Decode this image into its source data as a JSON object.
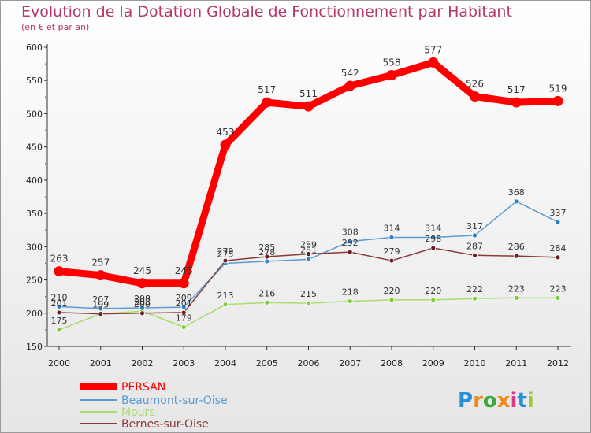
{
  "chart_data": {
    "type": "line",
    "title": "Evolution de la Dotation Globale de Fonctionnement par Habitant",
    "subtitle": "(en € et par an)",
    "categories": [
      "2000",
      "2001",
      "2002",
      "2003",
      "2004",
      "2005",
      "2006",
      "2007",
      "2008",
      "2009",
      "2010",
      "2011",
      "2012"
    ],
    "ylim": [
      150,
      600
    ],
    "yticks": [
      150,
      200,
      250,
      300,
      350,
      400,
      450,
      500,
      550,
      600
    ],
    "grid": false,
    "legend_position": "bottom-left",
    "series": [
      {
        "name": "Beaumont-sur-Oise",
        "color": "#5b9bd5",
        "marker": "#2a7fc8",
        "values": [
          210,
          207,
          208,
          209,
          275,
          278,
          281,
          308,
          314,
          314,
          317,
          368,
          337
        ]
      },
      {
        "name": "Mours",
        "color": "#a8dd6a",
        "marker": "#7ccc3a",
        "values": [
          175,
          199,
          203,
          179,
          213,
          216,
          215,
          218,
          220,
          220,
          222,
          223,
          223
        ]
      },
      {
        "name": "Bernes-sur-Oise",
        "color": "#8b3a3a",
        "marker": "#6b1e1e",
        "values": [
          201,
          199,
          200,
          201,
          279,
          285,
          289,
          292,
          279,
          298,
          287,
          286,
          284
        ]
      },
      {
        "name": "PERSAN",
        "color": "#ff0000",
        "marker": "#ff0000",
        "values": [
          263,
          257,
          245,
          245,
          453,
          517,
          511,
          542,
          558,
          577,
          526,
          517,
          519
        ]
      }
    ],
    "legend": [
      "PERSAN",
      "Beaumont-sur-Oise",
      "Mours",
      "Bernes-sur-Oise"
    ]
  },
  "logo": {
    "letters": [
      "P",
      "r",
      "o",
      "x",
      "i",
      "t",
      "i"
    ],
    "colors": [
      "#2a8fd8",
      "#f08a1c",
      "#3aa83a",
      "#f08a1c",
      "#d83a8a",
      "#2a8fd8",
      "#9ac83a"
    ]
  }
}
